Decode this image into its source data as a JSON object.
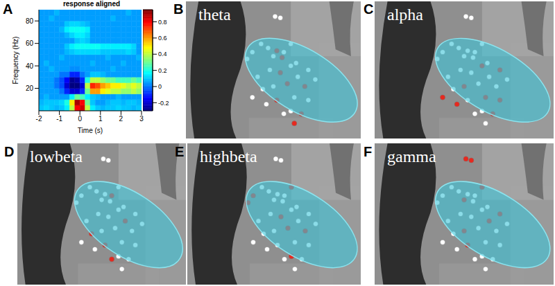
{
  "chart_data": [
    {
      "type": "heatmap",
      "title": "response aligned",
      "annotations": [
        "A"
      ],
      "x_label": "Time (s)",
      "y_label": "Frequency (Hz)",
      "x": [
        -1.875,
        -1.625,
        -1.375,
        -1.125,
        -0.875,
        -0.625,
        -0.375,
        -0.125,
        0.125,
        0.375,
        0.625,
        0.875,
        1.125,
        1.375,
        1.625,
        1.875,
        2.125,
        2.375,
        2.625,
        2.875
      ],
      "y": [
        2.5,
        7.5,
        12.5,
        17.5,
        22.5,
        27.5,
        32.5,
        37.5,
        42.5,
        47.5,
        52.5,
        57.5,
        62.5,
        67.5,
        72.5,
        77.5,
        82.5,
        87.5
      ],
      "z": [
        [
          0.1,
          0.12,
          0.1,
          0.08,
          0.1,
          0.15,
          0.4,
          0.8,
          0.85,
          0.4,
          0.15,
          0.1,
          0.08,
          0.1,
          0.1,
          0.12,
          0.1,
          0.1,
          0.08,
          0.1
        ],
        [
          0.08,
          0.1,
          0.1,
          0.1,
          0.12,
          0.2,
          0.5,
          0.9,
          0.8,
          0.3,
          0.1,
          0.05,
          0.05,
          0.08,
          0.1,
          0.1,
          0.08,
          0.1,
          0.1,
          0.08
        ],
        [
          0.05,
          0.08,
          0.05,
          0.05,
          0.05,
          0.05,
          0.15,
          0.3,
          0.25,
          0.15,
          0.1,
          0.08,
          0.05,
          0.05,
          0.05,
          0.08,
          0.05,
          0.05,
          0.05,
          0.05
        ],
        [
          0.05,
          0.05,
          0.05,
          0.05,
          0.0,
          -0.1,
          -0.2,
          -0.2,
          -0.1,
          0.3,
          0.6,
          0.6,
          0.5,
          0.45,
          0.4,
          0.4,
          0.35,
          0.35,
          0.4,
          0.35
        ],
        [
          0.05,
          0.05,
          0.05,
          0.0,
          -0.05,
          -0.2,
          -0.3,
          -0.3,
          -0.2,
          0.4,
          0.75,
          0.7,
          0.6,
          0.55,
          0.5,
          0.5,
          0.45,
          0.4,
          0.45,
          0.4
        ],
        [
          0.05,
          0.05,
          0.05,
          0.0,
          -0.05,
          -0.15,
          -0.28,
          -0.25,
          -0.1,
          0.2,
          0.4,
          0.4,
          0.35,
          0.3,
          0.3,
          0.25,
          0.25,
          0.25,
          0.3,
          0.25
        ],
        [
          0.05,
          0.05,
          0.05,
          0.05,
          0.0,
          0.0,
          -0.1,
          -0.1,
          0.0,
          0.05,
          0.1,
          0.1,
          0.08,
          0.05,
          0.05,
          0.05,
          0.05,
          0.05,
          0.05,
          0.05
        ],
        [
          0.05,
          0.05,
          0.08,
          0.05,
          0.05,
          0.05,
          0.03,
          0.03,
          0.05,
          0.05,
          0.05,
          0.05,
          0.05,
          0.05,
          0.08,
          0.05,
          0.05,
          0.05,
          0.05,
          0.05
        ],
        [
          0.05,
          0.08,
          0.05,
          0.05,
          0.05,
          0.05,
          0.05,
          0.05,
          0.05,
          0.05,
          0.08,
          0.05,
          0.05,
          0.05,
          0.05,
          0.05,
          0.08,
          0.05,
          0.05,
          0.05
        ],
        [
          0.05,
          0.05,
          0.05,
          0.05,
          0.08,
          0.05,
          0.05,
          0.05,
          0.05,
          0.05,
          0.05,
          0.05,
          0.05,
          0.08,
          0.05,
          0.05,
          0.05,
          0.05,
          0.05,
          0.08
        ],
        [
          0.05,
          0.05,
          0.05,
          0.05,
          0.05,
          0.08,
          0.1,
          0.12,
          0.12,
          0.12,
          0.12,
          0.12,
          0.1,
          0.1,
          0.1,
          0.1,
          0.1,
          0.12,
          0.1,
          0.05
        ],
        [
          0.05,
          0.05,
          0.05,
          0.05,
          0.05,
          0.1,
          0.15,
          0.18,
          0.18,
          0.18,
          0.18,
          0.18,
          0.15,
          0.15,
          0.15,
          0.15,
          0.15,
          0.15,
          0.12,
          0.05
        ],
        [
          0.05,
          0.05,
          0.05,
          0.05,
          0.05,
          0.05,
          0.05,
          0.1,
          0.12,
          0.1,
          0.05,
          0.05,
          0.05,
          0.05,
          0.05,
          0.05,
          0.05,
          0.05,
          0.05,
          0.05
        ],
        [
          0.05,
          0.05,
          0.05,
          0.05,
          0.05,
          0.08,
          0.12,
          0.15,
          0.15,
          0.12,
          0.05,
          0.05,
          0.05,
          0.05,
          0.05,
          0.05,
          0.05,
          0.05,
          0.05,
          0.05
        ],
        [
          0.05,
          0.05,
          0.05,
          0.05,
          0.08,
          0.15,
          0.18,
          0.18,
          0.18,
          0.15,
          0.05,
          0.05,
          0.05,
          0.05,
          0.05,
          0.05,
          0.05,
          0.05,
          0.05,
          0.05
        ],
        [
          0.05,
          0.05,
          0.05,
          0.05,
          0.05,
          0.1,
          0.12,
          0.12,
          0.1,
          0.08,
          0.05,
          0.05,
          0.05,
          0.05,
          0.05,
          0.05,
          0.05,
          0.05,
          0.05,
          0.05
        ],
        [
          0.05,
          0.05,
          0.08,
          0.05,
          0.05,
          0.05,
          0.05,
          0.05,
          0.05,
          0.05,
          0.05,
          0.05,
          0.05,
          0.05,
          0.08,
          0.05,
          0.05,
          0.05,
          0.05,
          0.05
        ],
        [
          0.05,
          0.05,
          0.05,
          0.08,
          0.05,
          0.05,
          0.05,
          0.05,
          0.05,
          0.05,
          0.05,
          0.05,
          0.05,
          0.05,
          0.05,
          0.05,
          0.05,
          0.08,
          0.05,
          0.05
        ]
      ],
      "xlim": [
        -2,
        3
      ],
      "ylim": [
        0,
        90
      ],
      "xticks": [
        -2,
        -1,
        0,
        1,
        2,
        3
      ],
      "yticks": [
        20,
        40,
        60,
        80
      ],
      "colorbar": {
        "range": [
          -0.3,
          0.95
        ],
        "ticks": [
          -0.2,
          0,
          0.2,
          0.4,
          0.6,
          0.8
        ]
      }
    },
    {
      "type": "scatter",
      "title": "theta",
      "annotations": [
        "B"
      ],
      "xlim": [
        0,
        100
      ],
      "ylim": [
        0,
        100
      ],
      "tick_labels": false,
      "x": [
        51,
        54,
        43,
        47,
        52,
        56,
        60,
        50,
        55,
        41,
        38,
        48,
        54,
        60,
        64,
        58,
        50,
        44,
        68,
        62,
        52,
        46,
        60,
        66,
        56,
        62,
        70,
        74,
        63,
        35,
        70,
        38
      ],
      "y": [
        89,
        88,
        69,
        66,
        64,
        63,
        69,
        60,
        59,
        45,
        30,
        50,
        48,
        53,
        45,
        40,
        38,
        36,
        38,
        30,
        28,
        25,
        20,
        18,
        18,
        11,
        50,
        43,
        55,
        58,
        28,
        63
      ],
      "colors": [
        "#ffffff",
        "#ffffff",
        "#ffffff",
        "#ffffff",
        "#e8281e",
        "#ffffff",
        "#ffffff",
        "#ffffff",
        "#e8281e",
        "#ffffff",
        "#ffffff",
        "#ffffff",
        "#e8281e",
        "#ffffff",
        "#ffffff",
        "#e8281e",
        "#ffffff",
        "#ffffff",
        "#e8281e",
        "#ffffff",
        "#e8281e",
        "#ffffff",
        "#ffffff",
        "#e8281e",
        "#ffffff",
        "#e8281e",
        "#ffffff",
        "#ffffff",
        "#ffffff",
        "#ffffff",
        "#ffffff",
        "#ffffff"
      ]
    },
    {
      "type": "scatter",
      "title": "alpha",
      "annotations": [
        "C"
      ],
      "xlim": [
        0,
        100
      ],
      "ylim": [
        0,
        100
      ],
      "tick_labels": false,
      "x": [
        51,
        54,
        43,
        47,
        52,
        56,
        60,
        50,
        55,
        41,
        38,
        48,
        54,
        60,
        64,
        58,
        50,
        44,
        68,
        62,
        52,
        46,
        60,
        66,
        56,
        62,
        70,
        74,
        63,
        35,
        70,
        38
      ],
      "y": [
        89,
        88,
        69,
        66,
        64,
        63,
        69,
        60,
        59,
        45,
        30,
        50,
        48,
        53,
        45,
        40,
        38,
        36,
        38,
        30,
        28,
        25,
        20,
        18,
        18,
        11,
        50,
        43,
        55,
        58,
        28,
        63
      ],
      "colors": [
        "#ffffff",
        "#ffffff",
        "#ffffff",
        "#ffffff",
        "#ffffff",
        "#ffffff",
        "#ffffff",
        "#ffffff",
        "#ffffff",
        "#ffffff",
        "#e8281e",
        "#ffffff",
        "#ffffff",
        "#e8281e",
        "#ffffff",
        "#ffffff",
        "#e8281e",
        "#ffffff",
        "#ffffff",
        "#e8281e",
        "#ffffff",
        "#e8281e",
        "#ffffff",
        "#e8281e",
        "#ffffff",
        "#ffffff",
        "#e8281e",
        "#ffffff",
        "#ffffff",
        "#ffffff",
        "#e8281e",
        "#ffffff"
      ]
    },
    {
      "type": "scatter",
      "title": "lowbeta",
      "annotations": [
        "D"
      ],
      "xlim": [
        0,
        100
      ],
      "ylim": [
        0,
        100
      ],
      "tick_labels": false,
      "x": [
        51,
        54,
        43,
        47,
        52,
        56,
        60,
        50,
        55,
        41,
        38,
        48,
        54,
        60,
        64,
        58,
        50,
        44,
        68,
        62,
        52,
        46,
        60,
        66,
        56,
        62,
        70,
        74,
        63,
        35,
        70,
        38
      ],
      "y": [
        89,
        88,
        69,
        66,
        64,
        63,
        69,
        60,
        59,
        45,
        30,
        50,
        48,
        53,
        45,
        40,
        38,
        36,
        38,
        30,
        28,
        25,
        20,
        18,
        18,
        11,
        50,
        43,
        55,
        58,
        28,
        63
      ],
      "colors": [
        "#ffffff",
        "#ffffff",
        "#ffffff",
        "#ffffff",
        "#ffffff",
        "#e8281e",
        "#ffffff",
        "#ffffff",
        "#ffffff",
        "#ffffff",
        "#ffffff",
        "#ffffff",
        "#ffffff",
        "#ffffff",
        "#e8281e",
        "#ffffff",
        "#ffffff",
        "#e8281e",
        "#ffffff",
        "#ffffff",
        "#e8281e",
        "#ffffff",
        "#ffffff",
        "#ffffff",
        "#e8281e",
        "#ffffff",
        "#ffffff",
        "#ffffff",
        "#ffffff",
        "#ffffff",
        "#ffffff",
        "#ffffff"
      ]
    },
    {
      "type": "scatter",
      "title": "highbeta",
      "annotations": [
        "E"
      ],
      "xlim": [
        0,
        100
      ],
      "ylim": [
        0,
        100
      ],
      "tick_labels": false,
      "x": [
        51,
        54,
        43,
        47,
        52,
        56,
        60,
        50,
        55,
        41,
        38,
        48,
        54,
        60,
        64,
        58,
        50,
        44,
        68,
        62,
        52,
        46,
        60,
        66,
        56,
        62,
        70,
        74,
        63,
        35,
        70,
        38
      ],
      "y": [
        89,
        88,
        69,
        66,
        64,
        63,
        69,
        60,
        59,
        45,
        30,
        50,
        48,
        53,
        45,
        40,
        38,
        36,
        38,
        30,
        28,
        25,
        20,
        18,
        18,
        11,
        50,
        43,
        55,
        58,
        28,
        63
      ],
      "colors": [
        "#ffffff",
        "#ffffff",
        "#ffffff",
        "#ffffff",
        "#ffffff",
        "#ffffff",
        "#e8281e",
        "#ffffff",
        "#ffffff",
        "#ffffff",
        "#ffffff",
        "#ffffff",
        "#e8281e",
        "#ffffff",
        "#ffffff",
        "#e8281e",
        "#ffffff",
        "#ffffff",
        "#e8281e",
        "#ffffff",
        "#ffffff",
        "#ffffff",
        "#e8281e",
        "#ffffff",
        "#ffffff",
        "#ffffff",
        "#ffffff",
        "#ffffff",
        "#ffffff",
        "#e8281e",
        "#ffffff",
        "#e8281e"
      ]
    },
    {
      "type": "scatter",
      "title": "gamma",
      "annotations": [
        "F"
      ],
      "xlim": [
        0,
        100
      ],
      "ylim": [
        0,
        100
      ],
      "tick_labels": false,
      "x": [
        51,
        54,
        43,
        47,
        52,
        56,
        60,
        50,
        55,
        41,
        38,
        48,
        54,
        60,
        64,
        58,
        50,
        44,
        68,
        62,
        52,
        46,
        60,
        66,
        56,
        62,
        70,
        74,
        63,
        35,
        70,
        38
      ],
      "y": [
        89,
        88,
        69,
        66,
        64,
        63,
        69,
        60,
        59,
        45,
        30,
        50,
        48,
        53,
        45,
        40,
        38,
        36,
        38,
        30,
        28,
        25,
        20,
        18,
        18,
        11,
        50,
        43,
        55,
        58,
        28,
        63
      ],
      "colors": [
        "#e8281e",
        "#e8281e",
        "#ffffff",
        "#ffffff",
        "#ffffff",
        "#ffffff",
        "#e8281e",
        "#e8281e",
        "#ffffff",
        "#ffffff",
        "#ffffff",
        "#ffffff",
        "#ffffff",
        "#ffffff",
        "#e8281e",
        "#ffffff",
        "#e8281e",
        "#ffffff",
        "#ffffff",
        "#ffffff",
        "#e8281e",
        "#ffffff",
        "#ffffff",
        "#ffffff",
        "#ffffff",
        "#ffffff",
        "#e8281e",
        "#ffffff",
        "#ffffff",
        "#ffffff",
        "#ffffff",
        "#ffffff"
      ]
    }
  ]
}
